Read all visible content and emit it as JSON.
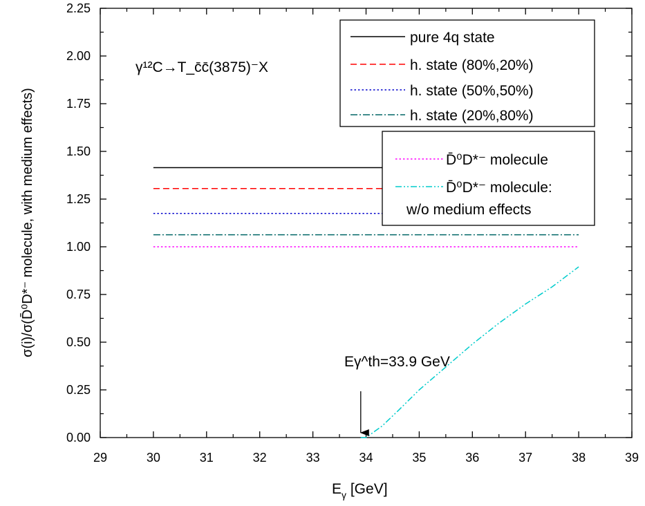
{
  "chart_data": {
    "type": "line",
    "title": "",
    "xlabel": "E",
    "xlabel_sub": "γ",
    "xlabel_unit": " [GeV]",
    "ylabel": "σ(i)/σ(D̄⁰D*⁻ molecule, with medium effects)",
    "xlim": [
      29,
      39
    ],
    "ylim": [
      0.0,
      2.25
    ],
    "x_ticks": [
      29,
      30,
      31,
      32,
      33,
      34,
      35,
      36,
      37,
      38,
      39
    ],
    "y_ticks": [
      0.0,
      0.25,
      0.5,
      0.75,
      1.0,
      1.25,
      1.5,
      1.75,
      2.0,
      2.25
    ],
    "x_tick_labels": [
      "29",
      "30",
      "31",
      "32",
      "33",
      "34",
      "35",
      "36",
      "37",
      "38",
      "39"
    ],
    "y_tick_labels": [
      "0.00",
      "0.25",
      "0.50",
      "0.75",
      "1.00",
      "1.25",
      "1.50",
      "1.75",
      "2.00",
      "2.25"
    ],
    "grid": false,
    "legend_placement": "top-right",
    "series": [
      {
        "name": "pure 4q state",
        "color": "#000000",
        "dash": "solid",
        "x": [
          30,
          38
        ],
        "y": [
          1.415,
          1.415
        ]
      },
      {
        "name": "h. state (80%,20%)",
        "color": "#ff0000",
        "dash": "dash",
        "x": [
          30,
          38
        ],
        "y": [
          1.305,
          1.305
        ]
      },
      {
        "name": "h. state (50%,50%)",
        "color": "#0000cc",
        "dash": "dot",
        "x": [
          30,
          38
        ],
        "y": [
          1.175,
          1.175
        ]
      },
      {
        "name": "h. state (20%,80%)",
        "color": "#006666",
        "dash": "dashdot",
        "x": [
          30,
          38
        ],
        "y": [
          1.063,
          1.063
        ]
      },
      {
        "name": "D̄⁰D*⁻ molecule",
        "color": "#ff00ff",
        "dash": "dot",
        "x": [
          30,
          38
        ],
        "y": [
          1.0,
          1.0
        ]
      },
      {
        "name": "D̄⁰D*⁻ molecule: w/o medium effects",
        "color": "#00cccc",
        "dash": "dashdotdot",
        "x": [
          33.9,
          34.0,
          34.3,
          34.6,
          35.0,
          35.5,
          36.0,
          36.5,
          37.0,
          37.5,
          38.0
        ],
        "y": [
          0.0,
          0.0,
          0.06,
          0.14,
          0.25,
          0.37,
          0.49,
          0.6,
          0.7,
          0.79,
          0.895
        ]
      }
    ],
    "annotations": {
      "reaction": "γ¹²C→T_c̄c̄(3875)⁻X",
      "threshold_label": "Eγ^th=33.9 GeV",
      "threshold_x": 33.9
    }
  }
}
